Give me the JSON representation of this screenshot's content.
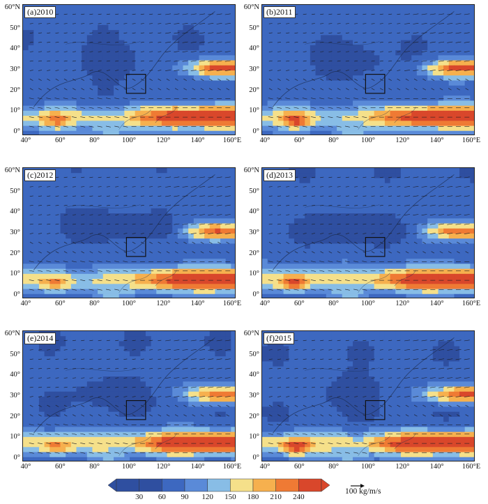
{
  "panels": [
    {
      "label": "(a)2010"
    },
    {
      "label": "(b)2011"
    },
    {
      "label": "(c)2012"
    },
    {
      "label": "(d)2013"
    },
    {
      "label": "(e)2014"
    },
    {
      "label": "(f)2015"
    }
  ],
  "y_ticks": [
    "0°",
    "10°",
    "20°",
    "30°",
    "40°",
    "50°",
    "60°N"
  ],
  "x_ticks": [
    "40°",
    "60°",
    "80°",
    "100°",
    "120°",
    "140°",
    "160°E"
  ],
  "colorbar": {
    "ticks": [
      "30",
      "60",
      "90",
      "120",
      "150",
      "180",
      "210",
      "240"
    ],
    "colors": [
      "#2f4fa0",
      "#3d68c0",
      "#5a8ad8",
      "#88bde6",
      "#f5e08a",
      "#f6b04e",
      "#ef7a34",
      "#d9472b"
    ]
  },
  "reference_vector": {
    "label": "100 kg/m/s"
  }
}
